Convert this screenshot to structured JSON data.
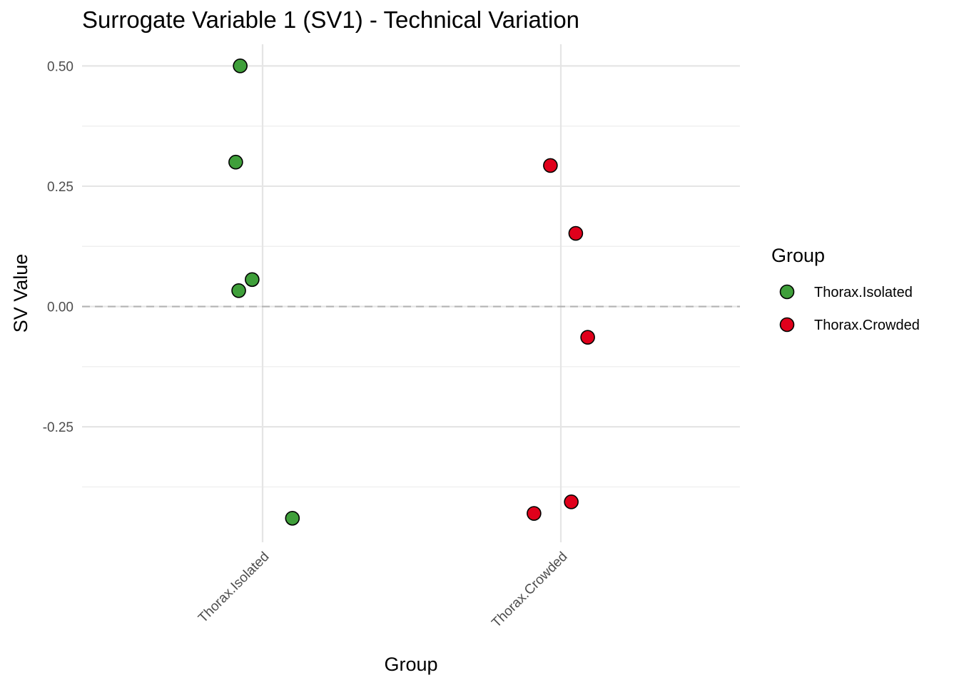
{
  "chart_data": {
    "type": "scatter",
    "title": "Surrogate Variable 1 (SV1) - Technical Variation",
    "xlabel": "Group",
    "ylabel": "SV Value",
    "categories": [
      "Thorax.Isolated",
      "Thorax.Crowded"
    ],
    "ylim": [
      -0.49,
      0.545
    ],
    "yticks": [
      -0.25,
      0.0,
      0.25,
      0.5
    ],
    "ytick_labels": [
      "-0.25",
      "0.00",
      "0.25",
      "0.50"
    ],
    "hline": 0.0,
    "legend": {
      "title": "Group",
      "position": "right",
      "entries": [
        {
          "label": "Thorax.Isolated",
          "color": "#3f9f3a"
        },
        {
          "label": "Thorax.Crowded",
          "color": "#e0001b"
        }
      ]
    },
    "series": [
      {
        "name": "Thorax.Isolated",
        "color": "#3f9f3a",
        "points": [
          {
            "x": "Thorax.Isolated",
            "jitter": -0.15,
            "y": 0.5
          },
          {
            "x": "Thorax.Isolated",
            "jitter": -0.18,
            "y": 0.3
          },
          {
            "x": "Thorax.Isolated",
            "jitter": -0.16,
            "y": 0.033
          },
          {
            "x": "Thorax.Isolated",
            "jitter": -0.07,
            "y": 0.056
          },
          {
            "x": "Thorax.Isolated",
            "jitter": 0.2,
            "y": -0.44
          }
        ]
      },
      {
        "name": "Thorax.Crowded",
        "color": "#e0001b",
        "points": [
          {
            "x": "Thorax.Crowded",
            "jitter": -0.07,
            "y": 0.293
          },
          {
            "x": "Thorax.Crowded",
            "jitter": 0.1,
            "y": 0.152
          },
          {
            "x": "Thorax.Crowded",
            "jitter": 0.18,
            "y": -0.064
          },
          {
            "x": "Thorax.Crowded",
            "jitter": 0.07,
            "y": -0.406
          },
          {
            "x": "Thorax.Crowded",
            "jitter": -0.18,
            "y": -0.43
          }
        ]
      }
    ]
  }
}
